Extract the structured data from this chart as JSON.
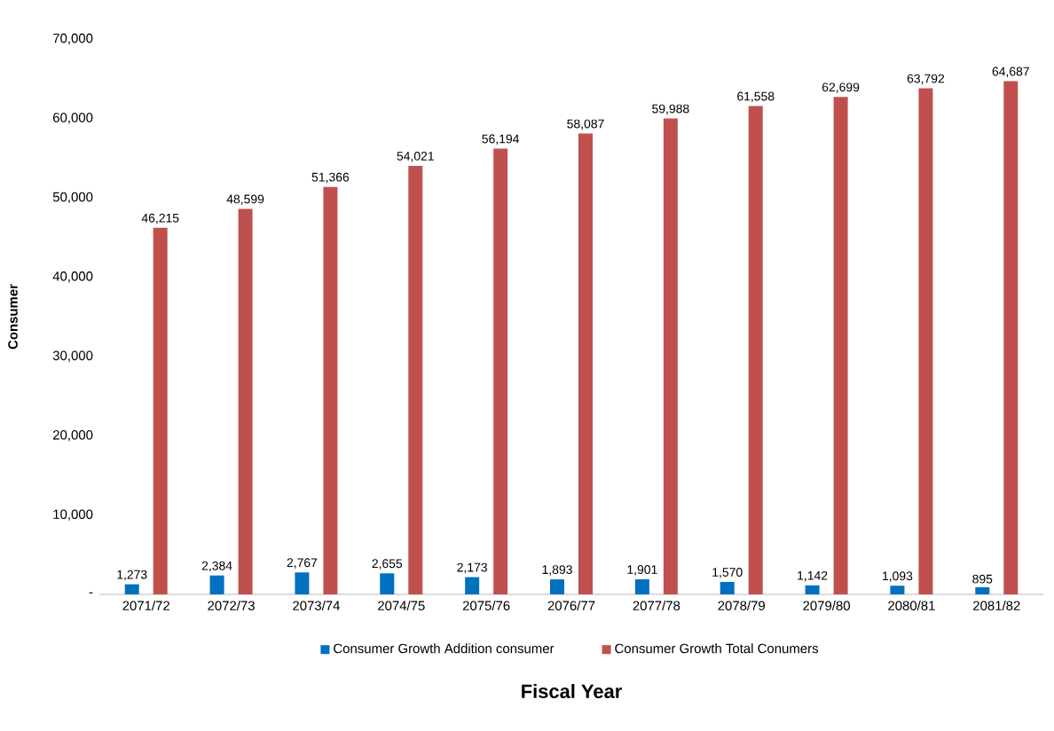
{
  "chart_data": {
    "type": "bar",
    "xlabel": "Fiscal Year",
    "ylabel": "Consumer",
    "categories": [
      "2071/72",
      "2072/73",
      "2073/74",
      "2074/75",
      "2075/76",
      "2076/77",
      "2077/78",
      "2078/79",
      "2079/80",
      "2080/81",
      "2081/82"
    ],
    "series": [
      {
        "name": "Consumer Growth Addition consumer",
        "color": "#0070c0",
        "values": [
          1273,
          2384,
          2767,
          2655,
          2173,
          1893,
          1901,
          1570,
          1142,
          1093,
          895
        ],
        "value_labels": [
          "1,273",
          "2,384",
          "2,767",
          "2,655",
          "2,173",
          "1,893",
          "1,901",
          "1,570",
          "1,142",
          "1,093",
          "895"
        ]
      },
      {
        "name": "Consumer Growth Total Conumers",
        "color": "#c0504d",
        "values": [
          46215,
          48599,
          51366,
          54021,
          56194,
          58087,
          59988,
          61558,
          62699,
          63792,
          64687
        ],
        "value_labels": [
          "46,215",
          "48,599",
          "51,366",
          "54,021",
          "56,194",
          "58,087",
          "59,988",
          "61,558",
          "62,699",
          "63,792",
          "64,687"
        ]
      }
    ],
    "ylim": [
      0,
      70000
    ],
    "yticks": [
      {
        "value": 0,
        "label": "-"
      },
      {
        "value": 10000,
        "label": "10,000"
      },
      {
        "value": 20000,
        "label": "20,000"
      },
      {
        "value": 30000,
        "label": "30,000"
      },
      {
        "value": 40000,
        "label": "40,000"
      },
      {
        "value": 50000,
        "label": "50,000"
      },
      {
        "value": 60000,
        "label": "60,000"
      },
      {
        "value": 70000,
        "label": "70,000"
      }
    ],
    "grid": false,
    "legend": "bottom"
  }
}
